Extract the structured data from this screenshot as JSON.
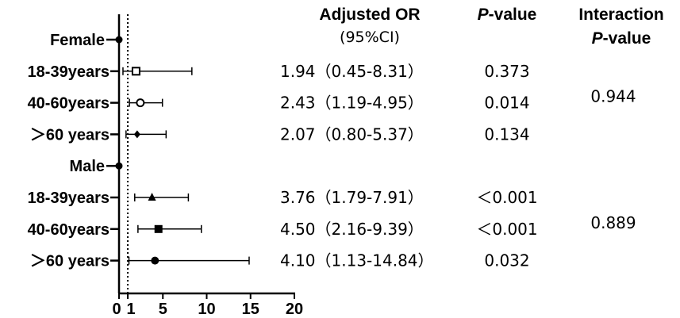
{
  "chart_data": {
    "type": "forest",
    "headers": {
      "or_label": "Adjusted OR",
      "ci_label": "(95%CI)",
      "p_label_italic": "P",
      "p_label_rest": "-value",
      "interaction_line1": "Interaction",
      "interaction_italic": "P",
      "interaction_rest": "-value"
    },
    "xaxis": {
      "ticks": [
        0,
        1,
        5,
        10,
        15,
        20
      ],
      "xlim": [
        0,
        20
      ],
      "reference_line": 1
    },
    "groups": [
      {
        "label": "Female",
        "interaction_p": "0.944",
        "rows": [
          {
            "label": "18-39years",
            "or": 1.94,
            "lo": 0.45,
            "hi": 8.31,
            "or_text": "1.94(0.45-8.31)",
            "p": "0.373",
            "marker": "square-open"
          },
          {
            "label": "40-60years",
            "or": 2.43,
            "lo": 1.19,
            "hi": 4.95,
            "or_text": "2.43(1.19-4.95)",
            "p": "0.014",
            "marker": "circle-open"
          },
          {
            "label": ">60 years",
            "or": 2.07,
            "lo": 0.8,
            "hi": 5.37,
            "or_text": "2.07(0.80-5.37)",
            "p": "0.134",
            "marker": "diamond"
          }
        ]
      },
      {
        "label": "Male",
        "interaction_p": "0.889",
        "rows": [
          {
            "label": "18-39years",
            "or": 3.76,
            "lo": 1.79,
            "hi": 7.91,
            "or_text": "3.76(1.79-7.91)",
            "p": "<0.001",
            "marker": "triangle"
          },
          {
            "label": "40-60years",
            "or": 4.5,
            "lo": 2.16,
            "hi": 9.39,
            "or_text": "4.50(2.16-9.39)",
            "p": "<0.001",
            "marker": "square"
          },
          {
            "label": ">60 years",
            "or": 4.1,
            "lo": 1.13,
            "hi": 14.84,
            "or_text": "4.10(1.13-14.84)",
            "p": "0.032",
            "marker": "circle"
          }
        ]
      }
    ]
  }
}
